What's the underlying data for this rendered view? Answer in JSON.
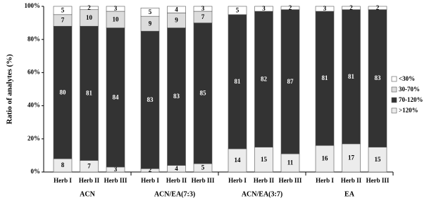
{
  "chart_data": {
    "type": "stacked_bar",
    "y_label": "Ratio of analytes (%)",
    "groups": [
      "ACN",
      "ACN/EA(7:3)",
      "ACN/EA(3:7)",
      "EA"
    ],
    "categories": [
      "Herb I",
      "Herb II",
      "Herb III",
      "Herb I",
      "Herb II",
      "Herb III",
      "Herb I",
      "Herb II",
      "Herb III",
      "Herb I",
      "Herb II",
      "Herb III"
    ],
    "series": [
      {
        "name": ">120%",
        "color": "#ececec",
        "values": [
          8,
          7,
          3,
          2,
          4,
          5,
          14,
          15,
          11,
          16,
          17,
          15
        ]
      },
      {
        "name": "70-120%",
        "color": "#333333",
        "values": [
          80,
          81,
          84,
          83,
          83,
          85,
          81,
          82,
          87,
          81,
          81,
          83
        ]
      },
      {
        "name": "30-70%",
        "color": "#dcdcdc",
        "values": [
          7,
          10,
          10,
          9,
          9,
          7,
          null,
          null,
          null,
          null,
          null,
          null
        ]
      },
      {
        "name": "<30%",
        "color": "#ffffff",
        "values": [
          5,
          2,
          3,
          5,
          4,
          3,
          5,
          3,
          2,
          3,
          2,
          2
        ]
      }
    ],
    "legend_order": [
      3,
      2,
      1,
      0
    ],
    "ylim": [
      0,
      100
    ],
    "yticks": [
      {
        "value": 0,
        "label": "0%"
      },
      {
        "value": 20,
        "label": "20%"
      },
      {
        "value": 40,
        "label": "40%"
      },
      {
        "value": 60,
        "label": "60%"
      },
      {
        "value": 80,
        "label": "80%"
      },
      {
        "value": 100,
        "label": "100%"
      }
    ]
  }
}
